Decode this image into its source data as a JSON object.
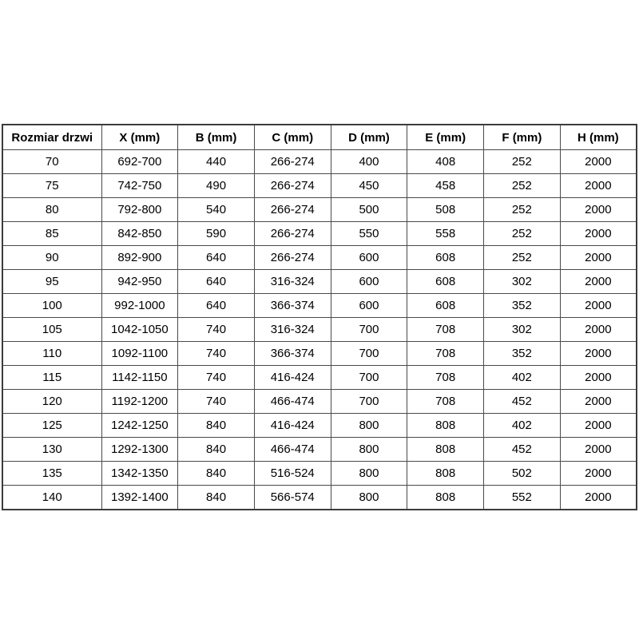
{
  "page": {
    "background": "#ffffff"
  },
  "colors": {
    "border_inner": "#4a4a4a",
    "border_outer": "#3c3c3c",
    "text": "#000000",
    "header_text": "#000000",
    "background": "#ffffff"
  },
  "table": {
    "columns": [
      "Rozmiar drzwi",
      "X (mm)",
      "B (mm)",
      "C (mm)",
      "D (mm)",
      "E (mm)",
      "F (mm)",
      "H (mm)"
    ],
    "rows": [
      [
        "70",
        "692-700",
        "440",
        "266-274",
        "400",
        "408",
        "252",
        "2000"
      ],
      [
        "75",
        "742-750",
        "490",
        "266-274",
        "450",
        "458",
        "252",
        "2000"
      ],
      [
        "80",
        "792-800",
        "540",
        "266-274",
        "500",
        "508",
        "252",
        "2000"
      ],
      [
        "85",
        "842-850",
        "590",
        "266-274",
        "550",
        "558",
        "252",
        "2000"
      ],
      [
        "90",
        "892-900",
        "640",
        "266-274",
        "600",
        "608",
        "252",
        "2000"
      ],
      [
        "95",
        "942-950",
        "640",
        "316-324",
        "600",
        "608",
        "302",
        "2000"
      ],
      [
        "100",
        "992-1000",
        "640",
        "366-374",
        "600",
        "608",
        "352",
        "2000"
      ],
      [
        "105",
        "1042-1050",
        "740",
        "316-324",
        "700",
        "708",
        "302",
        "2000"
      ],
      [
        "110",
        "1092-1100",
        "740",
        "366-374",
        "700",
        "708",
        "352",
        "2000"
      ],
      [
        "115",
        "1142-1150",
        "740",
        "416-424",
        "700",
        "708",
        "402",
        "2000"
      ],
      [
        "120",
        "1192-1200",
        "740",
        "466-474",
        "700",
        "708",
        "452",
        "2000"
      ],
      [
        "125",
        "1242-1250",
        "840",
        "416-424",
        "800",
        "808",
        "402",
        "2000"
      ],
      [
        "130",
        "1292-1300",
        "840",
        "466-474",
        "800",
        "808",
        "452",
        "2000"
      ],
      [
        "135",
        "1342-1350",
        "840",
        "516-524",
        "800",
        "808",
        "502",
        "2000"
      ],
      [
        "140",
        "1392-1400",
        "840",
        "566-574",
        "800",
        "808",
        "552",
        "2000"
      ]
    ]
  },
  "chart_data": {
    "type": "table",
    "title": "",
    "columns": [
      "Rozmiar drzwi",
      "X (mm)",
      "B (mm)",
      "C (mm)",
      "D (mm)",
      "E (mm)",
      "F (mm)",
      "H (mm)"
    ],
    "rows": [
      [
        "70",
        "692-700",
        "440",
        "266-274",
        "400",
        "408",
        "252",
        "2000"
      ],
      [
        "75",
        "742-750",
        "490",
        "266-274",
        "450",
        "458",
        "252",
        "2000"
      ],
      [
        "80",
        "792-800",
        "540",
        "266-274",
        "500",
        "508",
        "252",
        "2000"
      ],
      [
        "85",
        "842-850",
        "590",
        "266-274",
        "550",
        "558",
        "252",
        "2000"
      ],
      [
        "90",
        "892-900",
        "640",
        "266-274",
        "600",
        "608",
        "252",
        "2000"
      ],
      [
        "95",
        "942-950",
        "640",
        "316-324",
        "600",
        "608",
        "302",
        "2000"
      ],
      [
        "100",
        "992-1000",
        "640",
        "366-374",
        "600",
        "608",
        "352",
        "2000"
      ],
      [
        "105",
        "1042-1050",
        "740",
        "316-324",
        "700",
        "708",
        "302",
        "2000"
      ],
      [
        "110",
        "1092-1100",
        "740",
        "366-374",
        "700",
        "708",
        "352",
        "2000"
      ],
      [
        "115",
        "1142-1150",
        "740",
        "416-424",
        "700",
        "708",
        "402",
        "2000"
      ],
      [
        "120",
        "1192-1200",
        "740",
        "466-474",
        "700",
        "708",
        "452",
        "2000"
      ],
      [
        "125",
        "1242-1250",
        "840",
        "416-424",
        "800",
        "808",
        "402",
        "2000"
      ],
      [
        "130",
        "1292-1300",
        "840",
        "466-474",
        "800",
        "808",
        "452",
        "2000"
      ],
      [
        "135",
        "1342-1350",
        "840",
        "516-524",
        "800",
        "808",
        "502",
        "2000"
      ],
      [
        "140",
        "1392-1400",
        "840",
        "566-574",
        "800",
        "808",
        "552",
        "2000"
      ]
    ]
  }
}
